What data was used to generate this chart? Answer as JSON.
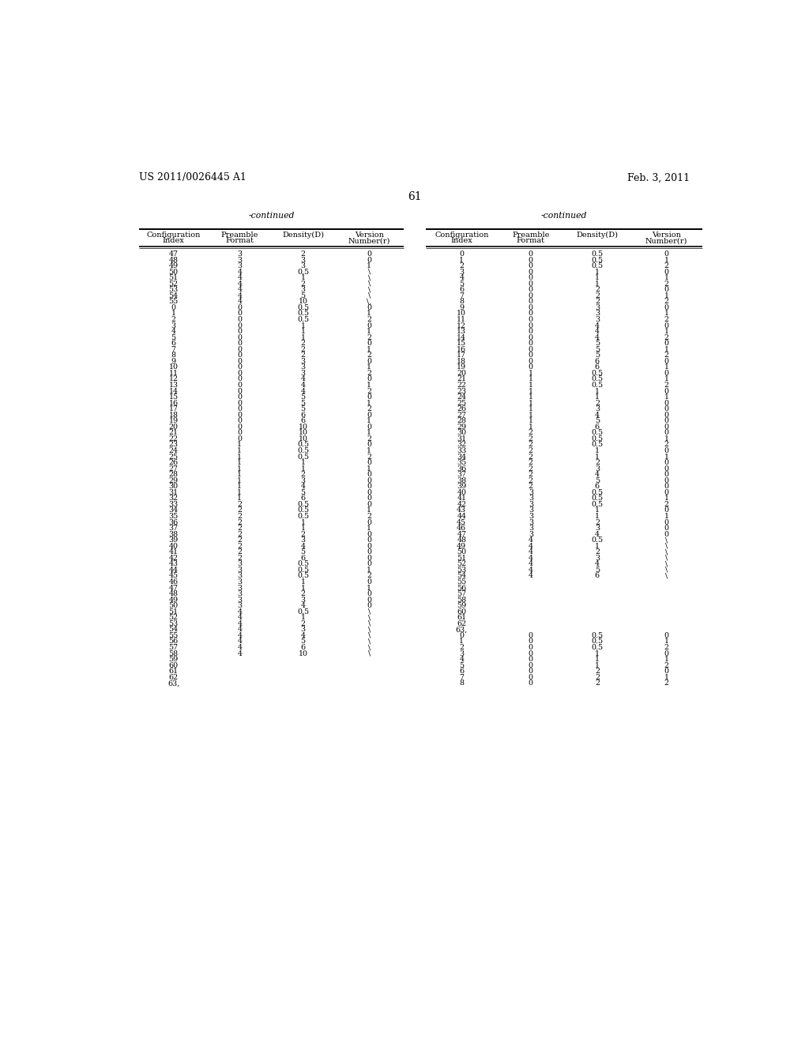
{
  "page_number": "61",
  "patent_number": "US 2011/0026445 A1",
  "patent_date": "Feb. 3, 2011",
  "background_color": "#ffffff",
  "left_table": {
    "title": "-continued",
    "headers": [
      "Configuration\nIndex",
      "Preamble\nFormat",
      "Density(D)",
      "Version\nNumber(r)"
    ],
    "rows": [
      [
        "47",
        "3",
        "2",
        "0"
      ],
      [
        "48",
        "3",
        "3",
        "0"
      ],
      [
        "49",
        "3",
        "3",
        "1"
      ],
      [
        "50",
        "4",
        "0.5",
        "\\"
      ],
      [
        "51",
        "4",
        "1",
        "\\"
      ],
      [
        "52",
        "4",
        "2",
        "\\"
      ],
      [
        "53",
        "4",
        "3",
        "\\"
      ],
      [
        "54",
        "4",
        "5",
        "\\"
      ],
      [
        "55",
        "4",
        "10",
        "\\,"
      ],
      [
        "0",
        "0",
        "0.5",
        "0"
      ],
      [
        "1",
        "0",
        "0.5",
        "1"
      ],
      [
        "2",
        "0",
        "0.5",
        "2"
      ],
      [
        "3",
        "0",
        "1",
        "0"
      ],
      [
        "4",
        "0",
        "1",
        "1"
      ],
      [
        "5",
        "0",
        "1",
        "2"
      ],
      [
        "6",
        "0",
        "2",
        "0"
      ],
      [
        "7",
        "0",
        "2",
        "1"
      ],
      [
        "8",
        "0",
        "2",
        "2"
      ],
      [
        "9",
        "0",
        "3",
        "0"
      ],
      [
        "10",
        "0",
        "3",
        "1"
      ],
      [
        "11",
        "0",
        "3",
        "2"
      ],
      [
        "12",
        "0",
        "4",
        "0"
      ],
      [
        "13",
        "0",
        "4",
        "1"
      ],
      [
        "14",
        "0",
        "4",
        "2"
      ],
      [
        "15",
        "0",
        "5",
        "0"
      ],
      [
        "16",
        "0",
        "5",
        "1"
      ],
      [
        "17",
        "0",
        "5",
        "2"
      ],
      [
        "18",
        "0",
        "6",
        "0"
      ],
      [
        "19",
        "0",
        "6",
        "1"
      ],
      [
        "20",
        "0",
        "10",
        "0"
      ],
      [
        "21",
        "0",
        "10",
        "1"
      ],
      [
        "22",
        "0",
        "10",
        "2"
      ],
      [
        "23",
        "1",
        "0.5",
        "0"
      ],
      [
        "24",
        "1",
        "0.5",
        "1"
      ],
      [
        "25",
        "1",
        "0.5",
        "2"
      ],
      [
        "26",
        "1",
        "1",
        "0"
      ],
      [
        "27",
        "1",
        "1",
        "1"
      ],
      [
        "28",
        "1",
        "2",
        "0"
      ],
      [
        "29",
        "1",
        "3",
        "0"
      ],
      [
        "30",
        "1",
        "4",
        "0"
      ],
      [
        "31",
        "1",
        "5",
        "0"
      ],
      [
        "32",
        "1",
        "6",
        "0"
      ],
      [
        "33",
        "2",
        "0.5",
        "0"
      ],
      [
        "34",
        "2",
        "0.5",
        "1"
      ],
      [
        "35",
        "2",
        "0.5",
        "2"
      ],
      [
        "36",
        "2",
        "1",
        "0"
      ],
      [
        "37",
        "2",
        "1",
        "1"
      ],
      [
        "38",
        "2",
        "2",
        "0"
      ],
      [
        "39",
        "2",
        "3",
        "0"
      ],
      [
        "40",
        "2",
        "4",
        "0"
      ],
      [
        "41",
        "2",
        "5",
        "0"
      ],
      [
        "42",
        "2",
        "6",
        "0"
      ],
      [
        "43",
        "3",
        "0.5",
        "0"
      ],
      [
        "44",
        "3",
        "0.5",
        "1"
      ],
      [
        "45",
        "3",
        "0.5",
        "2"
      ],
      [
        "46",
        "3",
        "1",
        "0"
      ],
      [
        "47",
        "3",
        "1",
        "1"
      ],
      [
        "48",
        "3",
        "2",
        "0"
      ],
      [
        "49",
        "3",
        "3",
        "0"
      ],
      [
        "50",
        "3",
        "4",
        "0"
      ],
      [
        "51",
        "4",
        "0.5",
        "\\"
      ],
      [
        "52",
        "4",
        "1",
        "\\"
      ],
      [
        "53",
        "4",
        "2",
        "\\"
      ],
      [
        "54",
        "4",
        "3",
        "\\"
      ],
      [
        "55",
        "4",
        "4",
        "\\"
      ],
      [
        "56",
        "4",
        "5",
        "\\"
      ],
      [
        "57",
        "4",
        "6",
        "\\"
      ],
      [
        "58",
        "4",
        "10",
        "\\"
      ],
      [
        "59",
        "",
        "",
        ""
      ],
      [
        "60",
        "",
        "",
        ""
      ],
      [
        "61",
        "",
        "",
        ""
      ],
      [
        "62",
        "",
        "",
        ""
      ],
      [
        "63,",
        "",
        "",
        ""
      ]
    ]
  },
  "right_table": {
    "title": "-continued",
    "headers": [
      "Configuration\nIndex",
      "Preamble\nFormat",
      "Density(D)",
      "Version\nNumber(r)"
    ],
    "rows": [
      [
        "0",
        "0",
        "0.5",
        "0"
      ],
      [
        "1",
        "0",
        "0.5",
        "1"
      ],
      [
        "2",
        "0",
        "0.5",
        "2"
      ],
      [
        "3",
        "0",
        "1",
        "0"
      ],
      [
        "4",
        "0",
        "1",
        "1"
      ],
      [
        "5",
        "0",
        "1",
        "2"
      ],
      [
        "6",
        "0",
        "2",
        "0"
      ],
      [
        "7",
        "0",
        "2",
        "1"
      ],
      [
        "8",
        "0",
        "2",
        "2"
      ],
      [
        "9",
        "0",
        "3",
        "0"
      ],
      [
        "10",
        "0",
        "3",
        "1"
      ],
      [
        "11",
        "0",
        "3",
        "2"
      ],
      [
        "12",
        "0",
        "4",
        "0"
      ],
      [
        "13",
        "0",
        "4",
        "1"
      ],
      [
        "14",
        "0",
        "4",
        "2"
      ],
      [
        "15",
        "0",
        "5",
        "0"
      ],
      [
        "16",
        "0",
        "5",
        "1"
      ],
      [
        "17",
        "0",
        "5",
        "2"
      ],
      [
        "18",
        "0",
        "6",
        "0"
      ],
      [
        "19",
        "0",
        "6",
        "1"
      ],
      [
        "20",
        "1",
        "0.5",
        "0"
      ],
      [
        "21",
        "1",
        "0.5",
        "1"
      ],
      [
        "22",
        "1",
        "0.5",
        "2"
      ],
      [
        "23",
        "1",
        "1",
        "0"
      ],
      [
        "24",
        "1",
        "1",
        "1"
      ],
      [
        "25",
        "1",
        "2",
        "0"
      ],
      [
        "26",
        "1",
        "3",
        "0"
      ],
      [
        "27",
        "1",
        "4",
        "0"
      ],
      [
        "28",
        "1",
        "5",
        "0"
      ],
      [
        "29",
        "1",
        "6",
        "0"
      ],
      [
        "30",
        "2",
        "0.5",
        "0"
      ],
      [
        "31",
        "2",
        "0.5",
        "1"
      ],
      [
        "32",
        "2",
        "0.5",
        "2"
      ],
      [
        "33",
        "2",
        "1",
        "0"
      ],
      [
        "34",
        "2",
        "1",
        "1"
      ],
      [
        "35",
        "2",
        "2",
        "0"
      ],
      [
        "36",
        "2",
        "3",
        "0"
      ],
      [
        "37",
        "2",
        "4",
        "0"
      ],
      [
        "38",
        "2",
        "5",
        "0"
      ],
      [
        "39",
        "2",
        "6",
        "0"
      ],
      [
        "40",
        "3",
        "0.5",
        "0"
      ],
      [
        "41",
        "3",
        "0.5",
        "1"
      ],
      [
        "42",
        "3",
        "0.5",
        "2"
      ],
      [
        "43",
        "3",
        "1",
        "0"
      ],
      [
        "44",
        "3",
        "1",
        "1"
      ],
      [
        "45",
        "3",
        "2",
        "0"
      ],
      [
        "46",
        "3",
        "3",
        "0"
      ],
      [
        "47",
        "3",
        "4",
        "0"
      ],
      [
        "48",
        "4",
        "0.5",
        "\\"
      ],
      [
        "49",
        "4",
        "1",
        "\\"
      ],
      [
        "50",
        "4",
        "2",
        "\\"
      ],
      [
        "51",
        "4",
        "3",
        "\\"
      ],
      [
        "52",
        "4",
        "4",
        "\\"
      ],
      [
        "53",
        "4",
        "5",
        "\\"
      ],
      [
        "54",
        "4",
        "6",
        "\\"
      ],
      [
        "55",
        "",
        "",
        ""
      ],
      [
        "56",
        "",
        "",
        ""
      ],
      [
        "57",
        "",
        "",
        ""
      ],
      [
        "58",
        "",
        "",
        ""
      ],
      [
        "59",
        "",
        "",
        ""
      ],
      [
        "60",
        "",
        "",
        ""
      ],
      [
        "61",
        "",
        "",
        ""
      ],
      [
        "62",
        "",
        "",
        ""
      ],
      [
        "63,",
        "",
        "",
        ""
      ],
      [
        "0",
        "0",
        "0.5",
        "0"
      ],
      [
        "1",
        "0",
        "0.5",
        "1"
      ],
      [
        "2",
        "0",
        "0.5",
        "2"
      ],
      [
        "3",
        "0",
        "1",
        "0"
      ],
      [
        "4",
        "0",
        "1",
        "1"
      ],
      [
        "5",
        "0",
        "1",
        "2"
      ],
      [
        "6",
        "0",
        "2",
        "0"
      ],
      [
        "7",
        "0",
        "2",
        "1"
      ],
      [
        "8",
        "0",
        "2",
        "2"
      ]
    ]
  }
}
